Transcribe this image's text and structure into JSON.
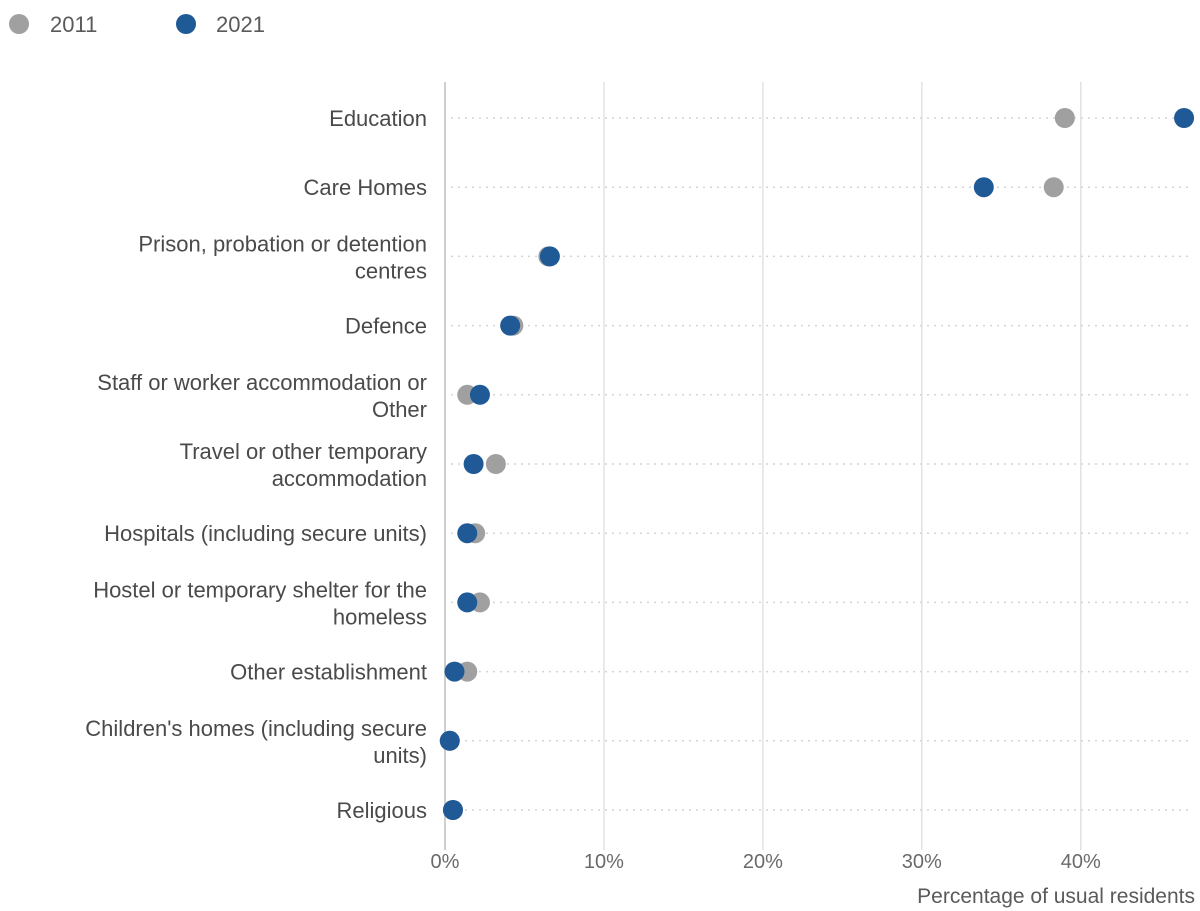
{
  "chart_data": {
    "type": "scatter",
    "title": "",
    "xlabel": "Percentage of usual residents",
    "ylabel": "",
    "xlim": [
      0,
      47
    ],
    "x_ticks": [
      0,
      10,
      20,
      30,
      40
    ],
    "x_tick_labels": [
      "0%",
      "10%",
      "20%",
      "30%",
      "40%"
    ],
    "grid": true,
    "legend_position": "top-left",
    "categories": [
      "Education",
      "Care Homes",
      "Prison, probation or detention centres",
      "Defence",
      "Staff or worker accommodation or Other",
      "Travel or other temporary accommodation",
      "Hospitals (including secure units)",
      "Hostel or temporary shelter for the homeless",
      "Other establishment",
      "Children's homes (including secure units)",
      "Religious"
    ],
    "category_lines": [
      [
        "Education"
      ],
      [
        "Care Homes"
      ],
      [
        "Prison, probation or detention",
        "centres"
      ],
      [
        "Defence"
      ],
      [
        "Staff or worker accommodation or",
        "Other"
      ],
      [
        "Travel or other temporary",
        "accommodation"
      ],
      [
        "Hospitals (including secure units)"
      ],
      [
        "Hostel or temporary shelter for the",
        "homeless"
      ],
      [
        "Other establishment"
      ],
      [
        "Children's homes (including secure",
        "units)"
      ],
      [
        "Religious"
      ]
    ],
    "series": [
      {
        "name": "2011",
        "color": "#a0a0a0",
        "values": [
          39.0,
          38.3,
          6.5,
          4.3,
          1.4,
          3.2,
          1.9,
          2.2,
          1.4,
          0.3,
          0.5
        ]
      },
      {
        "name": "2021",
        "color": "#1f5a96",
        "values": [
          46.5,
          33.9,
          6.6,
          4.1,
          2.2,
          1.8,
          1.4,
          1.4,
          0.6,
          0.3,
          0.5
        ]
      }
    ]
  }
}
